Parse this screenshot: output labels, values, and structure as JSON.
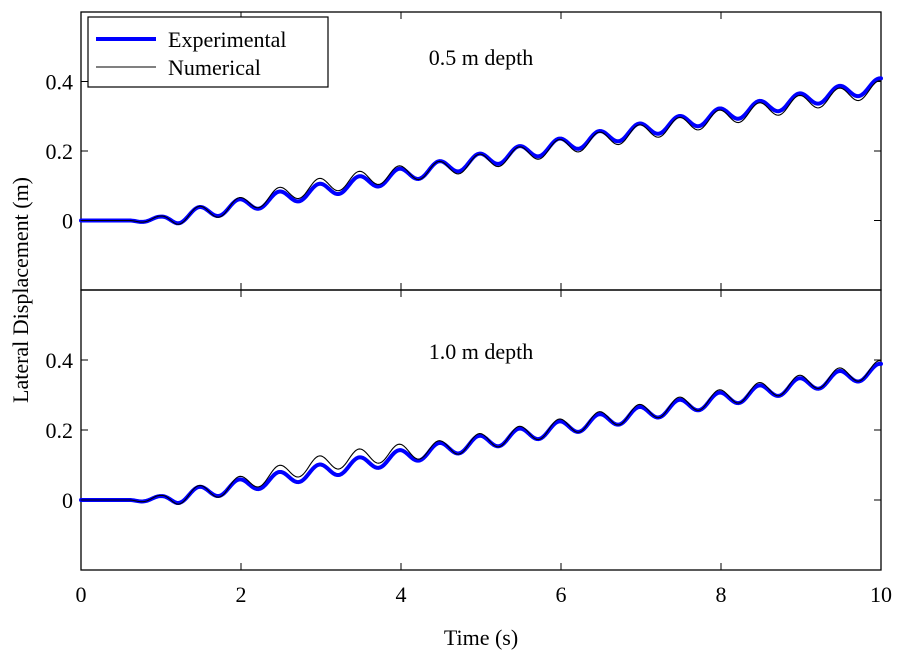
{
  "chart_data": [
    {
      "type": "line",
      "annotation": "0.5 m depth",
      "xlim": [
        0,
        10
      ],
      "ylim": [
        -0.2,
        0.6
      ],
      "yticks": [
        0,
        0.2,
        0.4
      ],
      "ytick_labels": [
        "0",
        "0.2",
        "0.4"
      ],
      "xticks": [
        0,
        2,
        4,
        6,
        8,
        10
      ],
      "show_xtick_labels": false,
      "legend": {
        "placement": "top-left",
        "entries": [
          "Experimental",
          "Numerical"
        ]
      },
      "series": [
        {
          "name": "Experimental",
          "color": "#0000ff",
          "params": {
            "offset": 0.0,
            "amp_scale": 1.0,
            "end": 0.4
          }
        },
        {
          "name": "Numerical",
          "color": "#000000",
          "params": {
            "offset": 0.015,
            "amp_scale": 1.15,
            "end": 0.39
          }
        }
      ]
    },
    {
      "type": "line",
      "annotation": "1.0 m depth",
      "xlim": [
        0,
        10
      ],
      "ylim": [
        -0.2,
        0.6
      ],
      "yticks": [
        0,
        0.2,
        0.4
      ],
      "ytick_labels": [
        "0",
        "0.2",
        "0.4"
      ],
      "xticks": [
        0,
        2,
        4,
        6,
        8,
        10
      ],
      "xtick_labels": [
        "0",
        "2",
        "4",
        "6",
        "8",
        "10"
      ],
      "show_xtick_labels": true,
      "series": [
        {
          "name": "Experimental",
          "color": "#0000ff",
          "params": {
            "offset": 0.0,
            "amp_scale": 1.0,
            "end": 0.38
          }
        },
        {
          "name": "Numerical",
          "color": "#000000",
          "params": {
            "offset": 0.02,
            "amp_scale": 1.2,
            "end": 0.385
          }
        }
      ]
    }
  ],
  "shared": {
    "xlabel": "Time (s)",
    "ylabel": "Lateral Displacement (m)"
  }
}
